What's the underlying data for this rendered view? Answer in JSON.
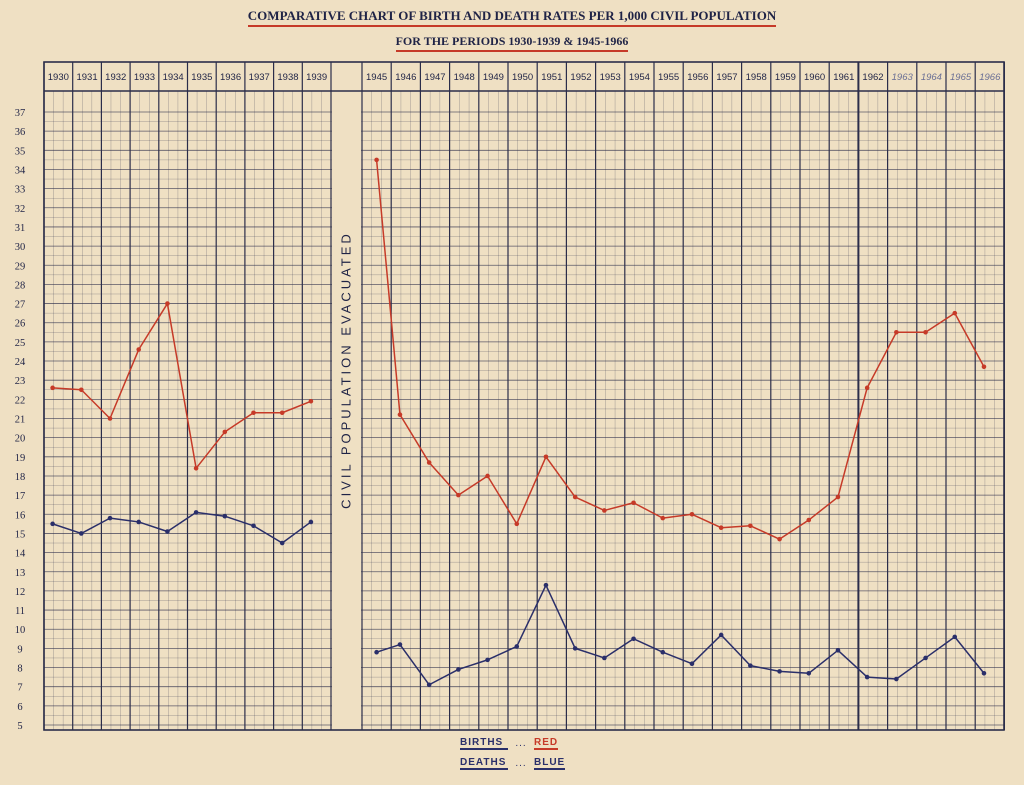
{
  "chart_data": {
    "type": "line",
    "title": "COMPARATIVE CHART OF BIRTH AND DEATH RATES PER 1,000 CIVIL POPULATION",
    "subtitle": "FOR THE PERIODS 1930-1939 & 1945-1966",
    "gap_label": "CIVIL POPULATION EVACUATED",
    "ylim": [
      5,
      37
    ],
    "y_ticks": [
      "37",
      "36",
      "35",
      "34",
      "33",
      "32",
      "31",
      "30",
      "29",
      "28",
      "27",
      "26",
      "25",
      "24",
      "23",
      "22",
      "21",
      "20",
      "19",
      "18",
      "17",
      "16",
      "15",
      "14",
      "13",
      "12",
      "11",
      "10",
      "9",
      "8",
      "7",
      "6",
      "5"
    ],
    "x_labels_period1": [
      "1930",
      "1931",
      "1932",
      "1933",
      "1934",
      "1935",
      "1936",
      "1937",
      "1938",
      "1939"
    ],
    "x_labels_period2": [
      "1945",
      "1946",
      "1947",
      "1948",
      "1949",
      "1950",
      "1951",
      "1952",
      "1953",
      "1954",
      "1955",
      "1956",
      "1957",
      "1958",
      "1959",
      "1960",
      "1961",
      "1962",
      "1963",
      "1964",
      "1965",
      "1966"
    ],
    "grid": true,
    "series": [
      {
        "name": "BIRTHS",
        "color": "#c63a28",
        "period1": [
          [
            0.3,
            22.6
          ],
          [
            1.3,
            22.5
          ],
          [
            2.3,
            21.0
          ],
          [
            3.3,
            24.6
          ],
          [
            4.3,
            27.0
          ],
          [
            5.3,
            18.4
          ],
          [
            6.3,
            20.3
          ],
          [
            7.3,
            21.3
          ],
          [
            8.3,
            21.3
          ],
          [
            9.3,
            21.9
          ]
        ],
        "period2": [
          [
            0.5,
            34.5
          ],
          [
            1.3,
            21.2
          ],
          [
            2.3,
            18.7
          ],
          [
            3.3,
            17.0
          ],
          [
            4.3,
            18.0
          ],
          [
            5.3,
            15.5
          ],
          [
            6.3,
            19.0
          ],
          [
            7.3,
            16.9
          ],
          [
            8.3,
            16.2
          ],
          [
            9.3,
            16.6
          ],
          [
            10.3,
            15.8
          ],
          [
            11.3,
            16.0
          ],
          [
            12.3,
            15.3
          ],
          [
            13.3,
            15.4
          ],
          [
            14.3,
            14.7
          ],
          [
            15.3,
            15.7
          ],
          [
            16.3,
            16.9
          ],
          [
            17.3,
            22.6
          ],
          [
            18.3,
            25.5
          ],
          [
            19.3,
            25.5
          ],
          [
            20.3,
            26.5
          ],
          [
            21.3,
            23.7
          ]
        ]
      },
      {
        "name": "DEATHS",
        "color": "#2a2f6a",
        "period1": [
          [
            0.3,
            15.5
          ],
          [
            1.3,
            15.0
          ],
          [
            2.3,
            15.8
          ],
          [
            3.3,
            15.6
          ],
          [
            4.3,
            15.1
          ],
          [
            5.3,
            16.1
          ],
          [
            6.3,
            15.9
          ],
          [
            7.3,
            15.4
          ],
          [
            8.3,
            14.5
          ],
          [
            9.3,
            15.6
          ]
        ],
        "period2": [
          [
            0.5,
            8.8
          ],
          [
            1.3,
            9.2
          ],
          [
            2.3,
            7.1
          ],
          [
            3.3,
            7.9
          ],
          [
            4.3,
            8.4
          ],
          [
            5.3,
            9.1
          ],
          [
            6.3,
            12.3
          ],
          [
            7.3,
            9.0
          ],
          [
            8.3,
            8.5
          ],
          [
            9.3,
            9.5
          ],
          [
            10.3,
            8.8
          ],
          [
            11.3,
            8.2
          ],
          [
            12.3,
            9.7
          ],
          [
            13.3,
            8.1
          ],
          [
            14.3,
            7.8
          ],
          [
            15.3,
            7.7
          ],
          [
            16.3,
            8.9
          ],
          [
            17.3,
            7.5
          ],
          [
            18.3,
            7.4
          ],
          [
            19.3,
            8.5
          ],
          [
            20.3,
            9.6
          ],
          [
            21.3,
            7.7
          ]
        ]
      }
    ],
    "legend": {
      "births": "BIRTHS",
      "births_color": "RED",
      "deaths": "DEATHS",
      "deaths_color": "BLUE",
      "separator": "..."
    }
  }
}
